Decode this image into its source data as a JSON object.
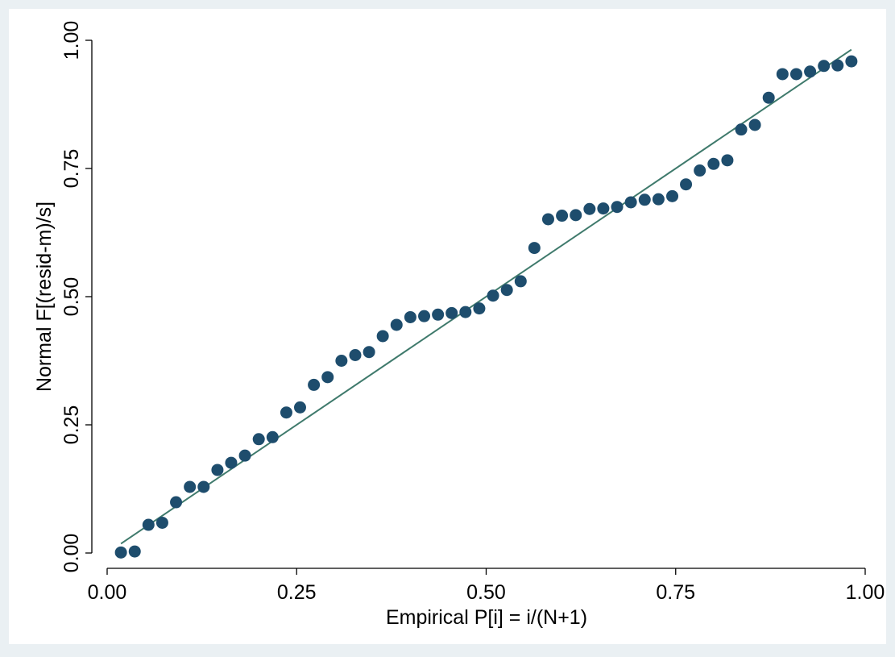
{
  "chart_data": {
    "type": "scatter",
    "title": "",
    "xlabel": "Empirical P[i] = i/(N+1)",
    "ylabel": "Normal F[(resid-m)/s]",
    "xlim": [
      0,
      1
    ],
    "ylim": [
      0,
      1
    ],
    "xticks": [
      "0.00",
      "0.25",
      "0.50",
      "0.75",
      "1.00"
    ],
    "yticks": [
      "0.00",
      "0.25",
      "0.50",
      "0.75",
      "1.00"
    ],
    "grid": false,
    "colors": {
      "points": "#1e4d6d",
      "reference_line": "#3f7a6c",
      "plot_background": "#ffffff",
      "outer_background": "#eaf0f3"
    },
    "series": [
      {
        "kind": "points",
        "x": [
          0.0182,
          0.0364,
          0.0545,
          0.0727,
          0.0909,
          0.1091,
          0.1273,
          0.1455,
          0.1636,
          0.1818,
          0.2,
          0.2182,
          0.2364,
          0.2545,
          0.2727,
          0.2909,
          0.3091,
          0.3273,
          0.3455,
          0.3636,
          0.3818,
          0.4,
          0.4182,
          0.4364,
          0.4545,
          0.4727,
          0.4909,
          0.5091,
          0.5273,
          0.5455,
          0.5636,
          0.5818,
          0.6,
          0.6182,
          0.6364,
          0.6545,
          0.6727,
          0.6909,
          0.7091,
          0.7273,
          0.7455,
          0.7636,
          0.7818,
          0.8,
          0.8182,
          0.8364,
          0.8545,
          0.8727,
          0.8909,
          0.9091,
          0.9273,
          0.9455,
          0.9636,
          0.9818
        ],
        "y": [
          0.001,
          0.003,
          0.055,
          0.059,
          0.099,
          0.129,
          0.129,
          0.162,
          0.176,
          0.19,
          0.222,
          0.226,
          0.274,
          0.284,
          0.328,
          0.343,
          0.375,
          0.386,
          0.392,
          0.423,
          0.445,
          0.46,
          0.462,
          0.465,
          0.468,
          0.47,
          0.477,
          0.502,
          0.513,
          0.53,
          0.595,
          0.651,
          0.658,
          0.659,
          0.671,
          0.672,
          0.675,
          0.684,
          0.689,
          0.69,
          0.696,
          0.719,
          0.746,
          0.759,
          0.766,
          0.826,
          0.835,
          0.888,
          0.934,
          0.934,
          0.939,
          0.95,
          0.951,
          0.959
        ]
      },
      {
        "kind": "line",
        "x": [
          0.0182,
          0.9818
        ],
        "y": [
          0.0182,
          0.9818
        ]
      }
    ]
  }
}
